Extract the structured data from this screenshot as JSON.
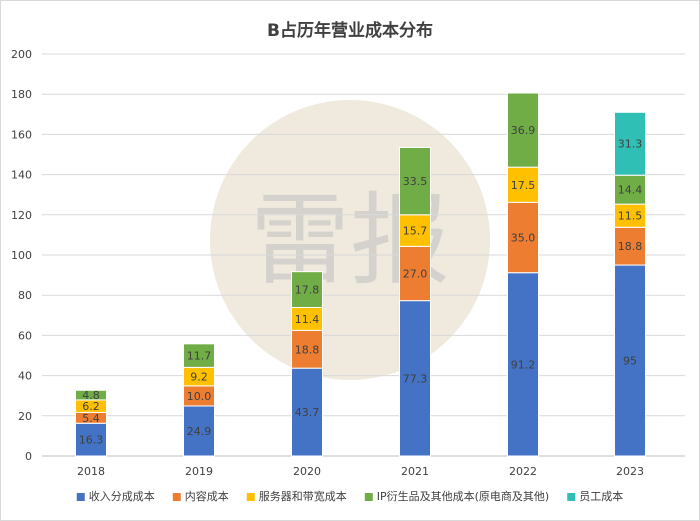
{
  "chart_data": {
    "type": "stacked-bar",
    "title": "B占历年营业成本分布",
    "xlabel": "",
    "ylabel": "",
    "categories": [
      "2018",
      "2019",
      "2020",
      "2021",
      "2022",
      "2023"
    ],
    "ylim": [
      0,
      200
    ],
    "yticks": [
      0,
      20,
      40,
      60,
      80,
      100,
      120,
      140,
      160,
      180,
      200
    ],
    "grid": true,
    "legend_position": "bottom",
    "series": [
      {
        "name": "收入分成成本",
        "color": "#4472c4",
        "values": [
          16.3,
          24.9,
          43.7,
          77.3,
          91.2,
          95
        ],
        "labels": [
          "16.3",
          "24.9",
          "43.7",
          "77.3",
          "91.2",
          "95"
        ]
      },
      {
        "name": "内容成本",
        "color": "#ed7d31",
        "values": [
          5.4,
          10.0,
          18.8,
          27.0,
          35.0,
          18.8
        ],
        "labels": [
          "5.4",
          "10.0",
          "18.8",
          "27.0",
          "35.0",
          "18.8"
        ]
      },
      {
        "name": "服务器和带宽成本",
        "color": "#ffc000",
        "values": [
          6.2,
          9.2,
          11.4,
          15.7,
          17.5,
          11.5
        ],
        "labels": [
          "6.2",
          "9.2",
          "11.4",
          "15.7",
          "17.5",
          "11.5"
        ]
      },
      {
        "name": "IP衍生品及其他成本(原电商及其他)",
        "color": "#70ad47",
        "values": [
          4.8,
          11.7,
          17.8,
          33.5,
          36.9,
          14.4
        ],
        "labels": [
          "4.8",
          "11.7",
          "17.8",
          "33.5",
          "36.9",
          "14.4"
        ]
      },
      {
        "name": "员工成本",
        "color": "#2fbfb5",
        "values": [
          0,
          0,
          0,
          0,
          0,
          31.3
        ],
        "labels": [
          "",
          "",
          "",
          "",
          "",
          "31.3"
        ]
      }
    ]
  },
  "watermark": {
    "text": "雷报",
    "circle_color": "#efe9de"
  }
}
